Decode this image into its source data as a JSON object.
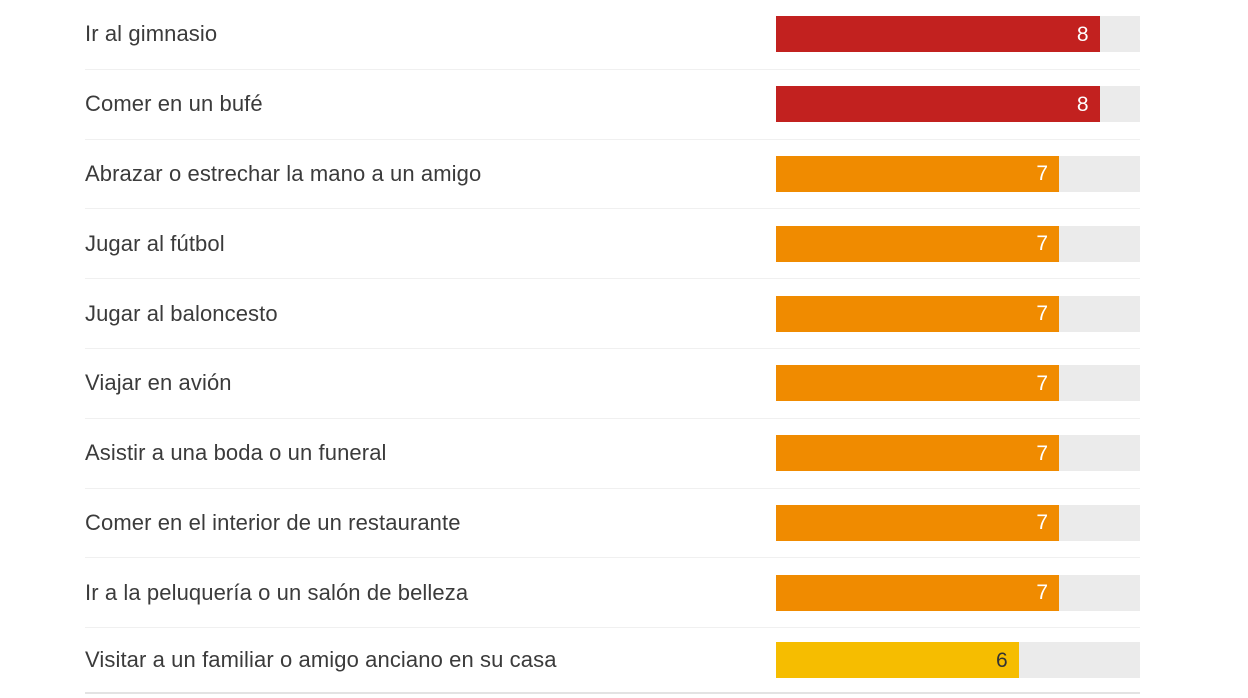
{
  "chart_data": {
    "type": "bar",
    "orientation": "horizontal",
    "title": "",
    "xlabel": "",
    "ylabel": "",
    "xlim": [
      0,
      9
    ],
    "grid": false,
    "legend": "none",
    "categories": [
      "Ir al gimnasio",
      "Comer en un bufé",
      "Abrazar o estrechar la mano a un amigo",
      "Jugar al fútbol",
      "Jugar al baloncesto",
      "Viajar en avión",
      "Asistir a una boda o un funeral",
      "Comer en el interior de un restaurante",
      "Ir a la peluquería o un salón de belleza",
      "Visitar a un familiar o amigo anciano en su casa"
    ],
    "values": [
      8,
      8,
      7,
      7,
      7,
      7,
      7,
      7,
      7,
      6
    ],
    "bar_color_keys": [
      "red",
      "red",
      "orange",
      "orange",
      "orange",
      "orange",
      "orange",
      "orange",
      "orange",
      "yellow"
    ],
    "palette": {
      "red": "#c2211f",
      "orange": "#f08b00",
      "yellow": "#f6bd00"
    },
    "track_color": "#ebebeb",
    "value_label_color_on_dark": "#ffffff",
    "value_label_color_on_yellow": "#333333",
    "label_text_color": "#3b3b3b",
    "divider_color": "#f0f0f0",
    "bottom_rule_color": "#e3e3e3"
  }
}
